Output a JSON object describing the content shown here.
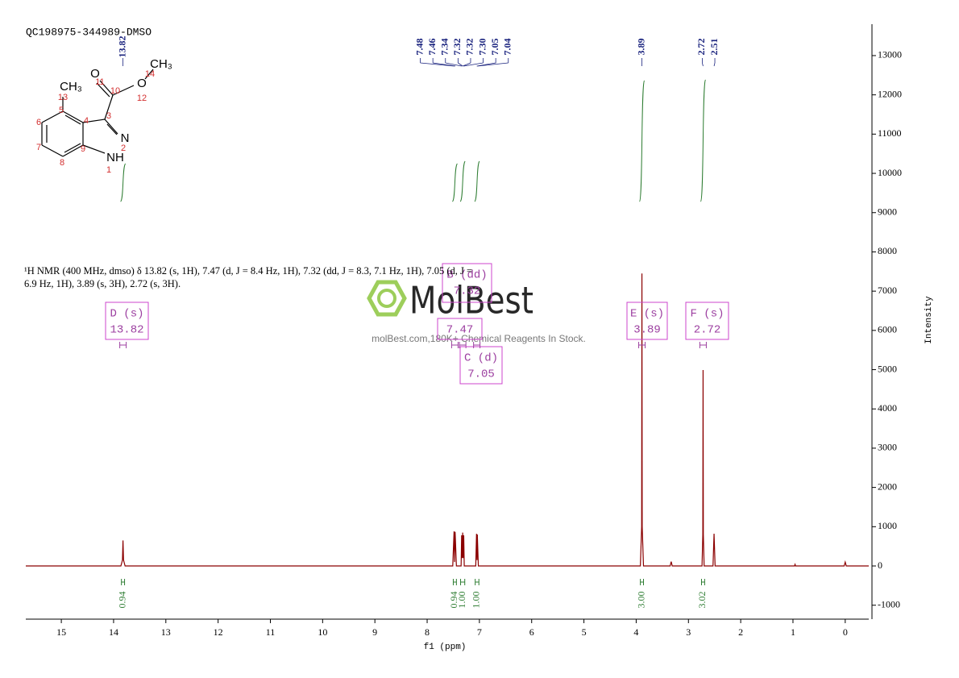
{
  "title": "QC198975-344989-DMSO",
  "description": "¹H NMR (400 MHz, dmso) δ 13.82 (s, 1H), 7.47 (d, J = 8.4 Hz, 1H), 7.32 (dd, J = 8.3, 7.1 Hz, 1H), 7.05 (d, J = 6.9 Hz, 1H), 3.89 (s, 3H), 2.72 (s, 3H).",
  "watermark": {
    "brand": "MolBest",
    "tagline": "molBest.com,180K+ Chemical Reagents In Stock."
  },
  "molecule": {
    "atoms": [
      "CH₃",
      "O",
      "O",
      "CH₃",
      "N",
      "NH"
    ],
    "numbers": [
      1,
      2,
      3,
      4,
      5,
      6,
      7,
      8,
      9,
      10,
      11,
      12,
      13,
      14
    ]
  },
  "chart_data": {
    "type": "line",
    "color": "#8b0000",
    "x_label": "f1 (ppm)",
    "y_label": "Intensity",
    "x": [
      15.68,
      13.86,
      13.83,
      13.82,
      13.81,
      13.78,
      7.51,
      7.485,
      7.475,
      7.465,
      7.44,
      7.35,
      7.34,
      7.33,
      7.32,
      7.31,
      7.3,
      7.29,
      7.07,
      7.055,
      7.045,
      7.04,
      7.02,
      3.92,
      3.895,
      3.89,
      3.885,
      3.86,
      3.35,
      3.33,
      3.31,
      2.74,
      2.725,
      2.72,
      2.715,
      2.7,
      2.53,
      2.51,
      2.49,
      0.97,
      0.96,
      0.95,
      0.02,
      0.0,
      -0.02,
      -0.45
    ],
    "values": [
      0,
      0,
      150,
      650,
      150,
      0,
      0,
      880,
      100,
      870,
      0,
      0,
      780,
      200,
      850,
      200,
      780,
      0,
      0,
      820,
      150,
      800,
      0,
      0,
      1000,
      7450,
      1000,
      0,
      0,
      110,
      0,
      0,
      800,
      4990,
      800,
      0,
      0,
      820,
      0,
      0,
      40,
      0,
      0,
      100,
      0,
      0
    ],
    "xlim": [
      15.68,
      -0.45
    ],
    "xticks": [
      15,
      14,
      13,
      12,
      11,
      10,
      9,
      8,
      7,
      6,
      5,
      4,
      3,
      2,
      1,
      0
    ],
    "ylim": [
      -1355,
      13800
    ],
    "yticks": [
      -1000,
      0,
      1000,
      2000,
      3000,
      4000,
      5000,
      6000,
      7000,
      8000,
      9000,
      10000,
      11000,
      12000,
      13000
    ],
    "peak_labels": [
      [
        "13.82"
      ],
      [
        "7.48",
        "7.46",
        "7.34",
        "7.32",
        "7.32",
        "7.30",
        "7.05",
        "7.04"
      ],
      [
        "3.89"
      ],
      [
        "2.72",
        "2.51"
      ]
    ],
    "integrals": [
      {
        "range": [
          13.85,
          13.79
        ],
        "label": "0.94"
      },
      {
        "range": [
          7.5,
          7.44
        ],
        "label": "0.94"
      },
      {
        "range": [
          7.36,
          7.28
        ],
        "label": "1.00"
      },
      {
        "range": [
          7.08,
          7.01
        ],
        "label": "1.00"
      },
      {
        "range": [
          3.92,
          3.86
        ],
        "label": "3.00"
      },
      {
        "range": [
          2.75,
          2.69
        ],
        "label": "3.02"
      }
    ],
    "multiplets": [
      {
        "name": "D (s)",
        "shift": "13.82"
      },
      {
        "name": "B (dd)",
        "shift": "7.32"
      },
      {
        "shift": "7.47"
      },
      {
        "name": "C (d)",
        "shift": "7.05"
      },
      {
        "name": "E (s)",
        "shift": "3.89"
      },
      {
        "name": "F (s)",
        "shift": "2.72"
      }
    ]
  }
}
